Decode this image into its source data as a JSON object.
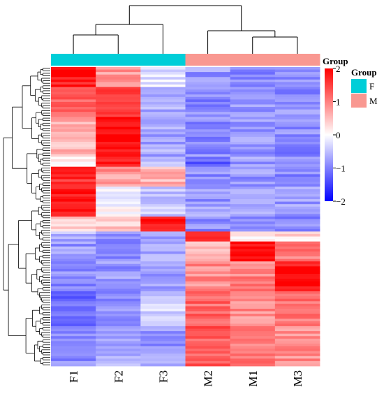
{
  "chart_data": {
    "type": "heatmap",
    "title": "",
    "xlabel": "",
    "ylabel": "",
    "columns": [
      "F1",
      "F2",
      "F3",
      "M2",
      "M1",
      "M3"
    ],
    "column_groups": [
      "F",
      "F",
      "F",
      "M",
      "M",
      "M"
    ],
    "annotation_title": "Group",
    "groups": [
      {
        "name": "F",
        "color": "#00CED8"
      },
      {
        "name": "M",
        "color": "#F99891"
      }
    ],
    "colorbar": {
      "title": "Group",
      "range": [
        -2,
        2
      ],
      "ticks": [
        "2",
        "1",
        "0",
        "−1",
        "−2"
      ],
      "colors": [
        "#0000FF",
        "#FFFFFF",
        "#FF0000"
      ]
    },
    "row_count": 120,
    "cluster_blocks": [
      {
        "rows": 8,
        "values": [
          1.8,
          0.8,
          -0.2,
          -0.8,
          -0.9,
          -0.8
        ]
      },
      {
        "rows": 12,
        "values": [
          1.2,
          1.6,
          -0.6,
          -0.9,
          -0.8,
          -0.9
        ]
      },
      {
        "rows": 16,
        "values": [
          0.6,
          1.9,
          -0.7,
          -0.9,
          -0.8,
          -0.9
        ]
      },
      {
        "rows": 4,
        "values": [
          0.2,
          1.8,
          -0.5,
          -1.2,
          -0.8,
          -0.8
        ]
      },
      {
        "rows": 8,
        "values": [
          1.6,
          0.8,
          0.6,
          -0.9,
          -0.8,
          -0.9
        ]
      },
      {
        "rows": 12,
        "values": [
          1.9,
          0.0,
          -0.5,
          -0.8,
          -0.8,
          -0.8
        ]
      },
      {
        "rows": 6,
        "values": [
          0.3,
          0.4,
          1.9,
          -0.9,
          -0.8,
          -0.9
        ]
      },
      {
        "rows": 4,
        "values": [
          -0.6,
          -0.8,
          -0.7,
          1.9,
          0.2,
          0.3
        ]
      },
      {
        "rows": 8,
        "values": [
          -0.8,
          -0.9,
          -0.7,
          0.6,
          1.9,
          1.0
        ]
      },
      {
        "rows": 12,
        "values": [
          -0.9,
          -0.8,
          -0.7,
          0.9,
          1.0,
          1.9
        ]
      },
      {
        "rows": 14,
        "values": [
          -1.1,
          -0.9,
          -0.3,
          1.2,
          0.9,
          1.1
        ]
      },
      {
        "rows": 16,
        "values": [
          -0.9,
          -0.6,
          -0.8,
          1.3,
          1.0,
          0.9
        ]
      }
    ]
  }
}
